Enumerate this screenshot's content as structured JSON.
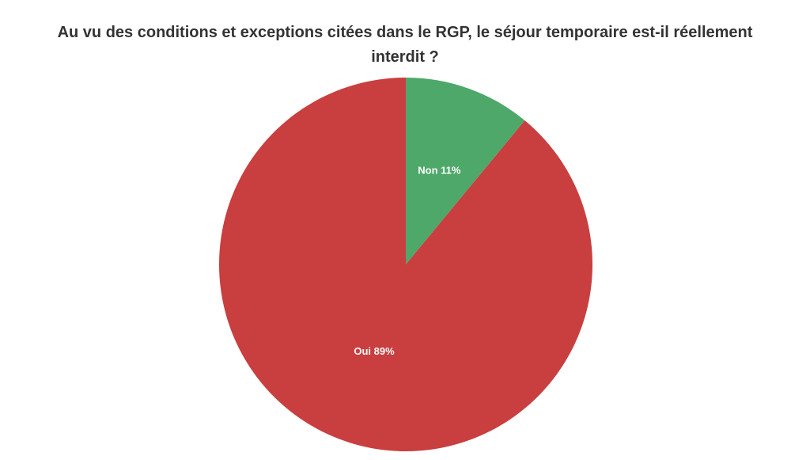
{
  "chart_data": {
    "type": "pie",
    "title": "Au vu des conditions et exceptions citées dans le RGP, le séjour temporaire est-il réellement interdit ?",
    "categories": [
      "Non",
      "Oui"
    ],
    "values": [
      11,
      89
    ],
    "value_labels": [
      "11%",
      "89%"
    ],
    "colors": [
      "#4ea86a",
      "#c93e3e"
    ]
  }
}
